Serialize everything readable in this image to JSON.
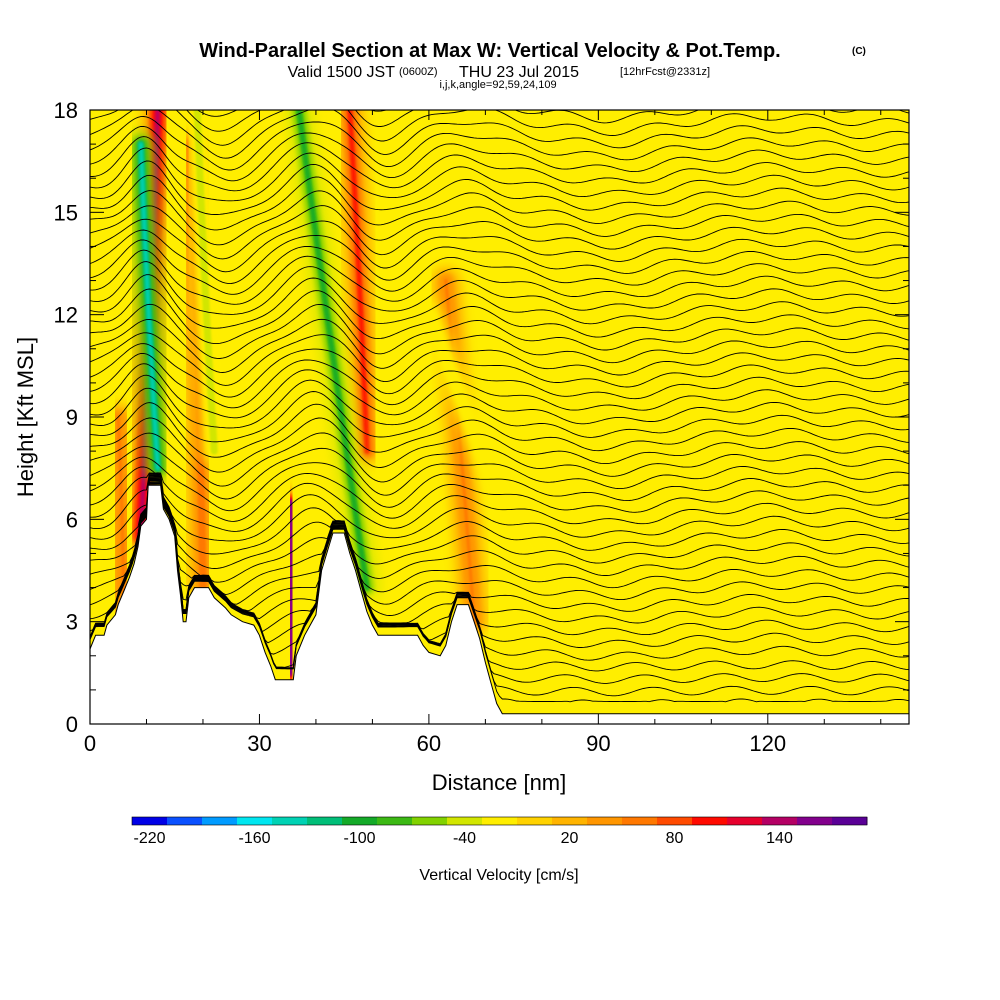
{
  "chart_data": {
    "type": "heatmap",
    "title": {
      "main": "Wind-Parallel Section at Max W: Vertical Velocity & Pot.Temp.",
      "unit_suffix": "(C)",
      "valid_prefix": "Valid 1500 JST",
      "valid_utc": "(0600Z)",
      "valid_date": "THU 23 Jul 2015",
      "forecast": "[12hrFcst@2331z]",
      "indices": "i,j,k,angle=92,59,24,109"
    },
    "xlabel": "Distance [nm]",
    "ylabel": "Height [Kft MSL]",
    "xlim": [
      0,
      145
    ],
    "ylim": [
      0,
      18
    ],
    "x_ticks": [
      0,
      30,
      60,
      90,
      120
    ],
    "x_tick_labels": [
      "0",
      "30",
      "60",
      "90",
      "120"
    ],
    "y_ticks": [
      0,
      3,
      6,
      9,
      12,
      15,
      18
    ],
    "y_tick_labels": [
      "0",
      "3",
      "6",
      "9",
      "12",
      "15",
      "18"
    ],
    "background_color": "#ffee00",
    "colorbar": {
      "label": "Vertical Velocity [cm/s]",
      "colors": [
        "#0000e6",
        "#0a50ff",
        "#009bff",
        "#00e6f0",
        "#00d2b4",
        "#00be78",
        "#14aa28",
        "#3cb914",
        "#82d200",
        "#d2e600",
        "#ffee00",
        "#ffd200",
        "#ffb400",
        "#ff9600",
        "#ff7800",
        "#ff4b00",
        "#ff0a00",
        "#e6002d",
        "#b40064",
        "#82008c",
        "#5a0096"
      ],
      "tick_values": [
        -220,
        -160,
        -100,
        -40,
        20,
        80,
        140
      ],
      "tick_labels": [
        "-220",
        "-160",
        "-100",
        "-40",
        "20",
        "80",
        "140"
      ]
    },
    "terrain": [
      [
        0,
        2.2
      ],
      [
        1,
        2.6
      ],
      [
        2.5,
        2.6
      ],
      [
        3,
        2.9
      ],
      [
        4.5,
        3.2
      ],
      [
        5,
        3.5
      ],
      [
        6,
        3.9
      ],
      [
        7,
        4.3
      ],
      [
        7.8,
        4.7
      ],
      [
        8.5,
        5.2
      ],
      [
        9,
        5.8
      ],
      [
        10,
        6.0
      ],
      [
        10.3,
        7.0
      ],
      [
        12.5,
        7.0
      ],
      [
        13,
        6.3
      ],
      [
        14,
        6.0
      ],
      [
        15,
        5.5
      ],
      [
        15.5,
        4.5
      ],
      [
        16,
        3.8
      ],
      [
        16.5,
        3.0
      ],
      [
        17,
        3.0
      ],
      [
        17.5,
        3.7
      ],
      [
        18.5,
        4.0
      ],
      [
        21,
        4.0
      ],
      [
        22,
        3.7
      ],
      [
        24,
        3.4
      ],
      [
        25,
        3.2
      ],
      [
        27,
        3.0
      ],
      [
        29,
        2.9
      ],
      [
        30,
        2.6
      ],
      [
        31,
        2.1
      ],
      [
        32,
        1.7
      ],
      [
        32.8,
        1.3
      ],
      [
        36,
        1.3
      ],
      [
        36.5,
        2.0
      ],
      [
        38,
        2.6
      ],
      [
        40,
        3.2
      ],
      [
        41,
        4.5
      ],
      [
        43,
        5.6
      ],
      [
        45,
        5.6
      ],
      [
        46,
        5.0
      ],
      [
        47,
        4.5
      ],
      [
        48,
        3.9
      ],
      [
        49,
        3.3
      ],
      [
        50,
        2.9
      ],
      [
        51,
        2.6
      ],
      [
        58,
        2.6
      ],
      [
        59,
        2.3
      ],
      [
        60,
        2.1
      ],
      [
        62,
        2.0
      ],
      [
        63,
        2.3
      ],
      [
        64,
        3.0
      ],
      [
        65,
        3.5
      ],
      [
        67,
        3.5
      ],
      [
        68,
        3.0
      ],
      [
        69,
        2.5
      ],
      [
        70,
        1.8
      ],
      [
        71,
        1.2
      ],
      [
        72,
        0.6
      ],
      [
        73,
        0.3
      ],
      [
        90,
        0.3
      ],
      [
        145,
        0.3
      ]
    ],
    "updrafts": [
      {
        "x_bottom": 9,
        "x_top": 12,
        "y_bottom": 5.5,
        "y_top": 18,
        "peak": 140
      },
      {
        "x_bottom": 35.5,
        "x_top": 35.5,
        "y_bottom": 1.5,
        "y_top": 6.5,
        "peak": 160
      },
      {
        "x_bottom": 49,
        "x_top": 46,
        "y_bottom": 8,
        "y_top": 18,
        "peak": 90
      },
      {
        "x_bottom": 20,
        "x_top": 18,
        "y_bottom": 4,
        "y_top": 17,
        "peak": 60
      },
      {
        "x_bottom": 68,
        "x_top": 63,
        "y_bottom": 3,
        "y_top": 13,
        "peak": 50
      },
      {
        "x_bottom": 6,
        "x_top": 5,
        "y_bottom": 3,
        "y_top": 9,
        "peak": 50
      }
    ],
    "downdrafts": [
      {
        "x_bottom": 12,
        "x_top": 9,
        "y_bottom": 7.5,
        "y_top": 17,
        "peak": -150
      },
      {
        "x_bottom": 49,
        "x_top": 37,
        "y_bottom": 4,
        "y_top": 18,
        "peak": -100
      },
      {
        "x_bottom": 22,
        "x_top": 19,
        "y_bottom": 8,
        "y_top": 18,
        "peak": -50
      },
      {
        "x_bottom": 79,
        "x_top": 60,
        "y_bottom": 4,
        "y_top": 12,
        "peak": -30
      }
    ],
    "potential_temperature_contours": {
      "color": "#000000",
      "count": 52
    }
  }
}
